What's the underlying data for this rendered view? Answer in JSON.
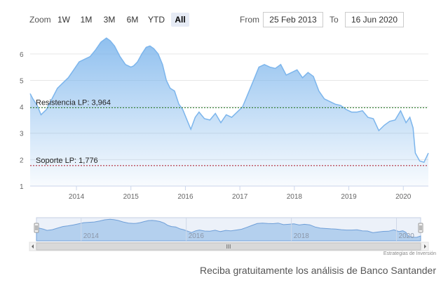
{
  "range_selector": {
    "zoom_label": "Zoom",
    "buttons": [
      "1W",
      "1M",
      "3M",
      "6M",
      "YTD",
      "All"
    ],
    "active": "All",
    "from_label": "From",
    "from_value": "25 Feb 2013",
    "to_label": "To",
    "to_value": "16 Jun 2020"
  },
  "chart_data": {
    "type": "area",
    "title": "",
    "xlabel": "",
    "ylabel": "",
    "x_range": [
      2013.15,
      2020.46
    ],
    "ylim": [
      1,
      6.5
    ],
    "y_ticks": [
      1,
      2,
      3,
      4,
      5,
      6
    ],
    "x_ticks": [
      2014,
      2015,
      2016,
      2017,
      2018,
      2019,
      2020
    ],
    "grid": "horizontal",
    "legend": "none",
    "series": [
      {
        "color": "#7cb5ec",
        "x": [
          2013.15,
          2013.2,
          2013.28,
          2013.35,
          2013.45,
          2013.55,
          2013.65,
          2013.75,
          2013.85,
          2013.95,
          2014.05,
          2014.15,
          2014.25,
          2014.35,
          2014.45,
          2014.55,
          2014.62,
          2014.7,
          2014.8,
          2014.9,
          2015.0,
          2015.05,
          2015.12,
          2015.2,
          2015.28,
          2015.35,
          2015.42,
          2015.5,
          2015.58,
          2015.65,
          2015.72,
          2015.8,
          2015.88,
          2015.95,
          2016.05,
          2016.1,
          2016.18,
          2016.25,
          2016.35,
          2016.45,
          2016.55,
          2016.65,
          2016.75,
          2016.85,
          2016.95,
          2017.05,
          2017.15,
          2017.25,
          2017.35,
          2017.45,
          2017.55,
          2017.65,
          2017.75,
          2017.85,
          2017.95,
          2018.05,
          2018.15,
          2018.25,
          2018.35,
          2018.45,
          2018.55,
          2018.65,
          2018.75,
          2018.85,
          2018.95,
          2019.05,
          2019.15,
          2019.25,
          2019.35,
          2019.45,
          2019.55,
          2019.65,
          2019.75,
          2019.85,
          2019.95,
          2020.05,
          2020.12,
          2020.18,
          2020.22,
          2020.3,
          2020.38,
          2020.46
        ],
        "values": [
          4.5,
          4.3,
          4.05,
          3.7,
          3.9,
          4.3,
          4.7,
          4.9,
          5.1,
          5.4,
          5.7,
          5.8,
          5.9,
          6.15,
          6.45,
          6.6,
          6.5,
          6.3,
          5.9,
          5.6,
          5.5,
          5.55,
          5.7,
          6.0,
          6.25,
          6.3,
          6.2,
          6.0,
          5.6,
          5.0,
          4.7,
          4.6,
          4.1,
          3.9,
          3.4,
          3.15,
          3.6,
          3.8,
          3.55,
          3.5,
          3.75,
          3.4,
          3.7,
          3.6,
          3.8,
          4.0,
          4.5,
          5.0,
          5.5,
          5.6,
          5.5,
          5.45,
          5.6,
          5.2,
          5.3,
          5.4,
          5.1,
          5.3,
          5.15,
          4.6,
          4.3,
          4.2,
          4.1,
          4.05,
          3.9,
          3.8,
          3.8,
          3.85,
          3.6,
          3.55,
          3.1,
          3.3,
          3.45,
          3.5,
          3.85,
          3.4,
          3.6,
          3.2,
          2.25,
          1.95,
          1.9,
          2.25
        ]
      }
    ],
    "annotations": [
      {
        "label": "Resistencia LP: 3,964",
        "y": 3.964,
        "color": "#2f7d2f",
        "dash": "dotted"
      },
      {
        "label": "Soporte LP: 1,776",
        "y": 1.776,
        "color": "#b22c3c",
        "dash": "dotted"
      }
    ],
    "navigator": {
      "x_ticks": [
        2014,
        2016,
        2018,
        2020
      ],
      "scrollbar_label": "III"
    }
  },
  "credit": "Estrategias de Inversión",
  "promo": "Reciba gratuitamente los análisis de Banco Santander"
}
